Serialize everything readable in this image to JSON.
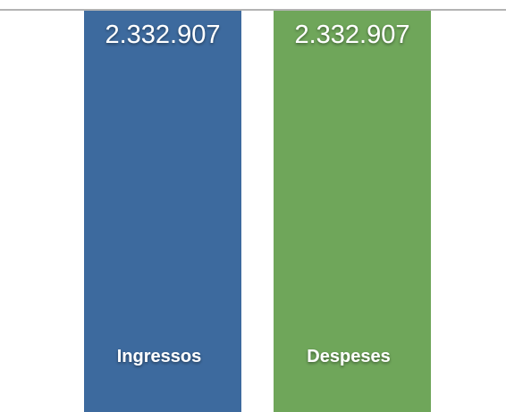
{
  "chart_data": {
    "type": "bar",
    "categories": [
      "Ingressos",
      "Despeses"
    ],
    "values": [
      2332907,
      2332907
    ],
    "value_labels": [
      "2.332.907",
      "2.332.907"
    ],
    "colors": [
      "#3d6a9e",
      "#6fa65a"
    ],
    "baseline_color": "#b3b3b3",
    "grid": false,
    "title": "",
    "xlabel": "",
    "ylabel": ""
  }
}
